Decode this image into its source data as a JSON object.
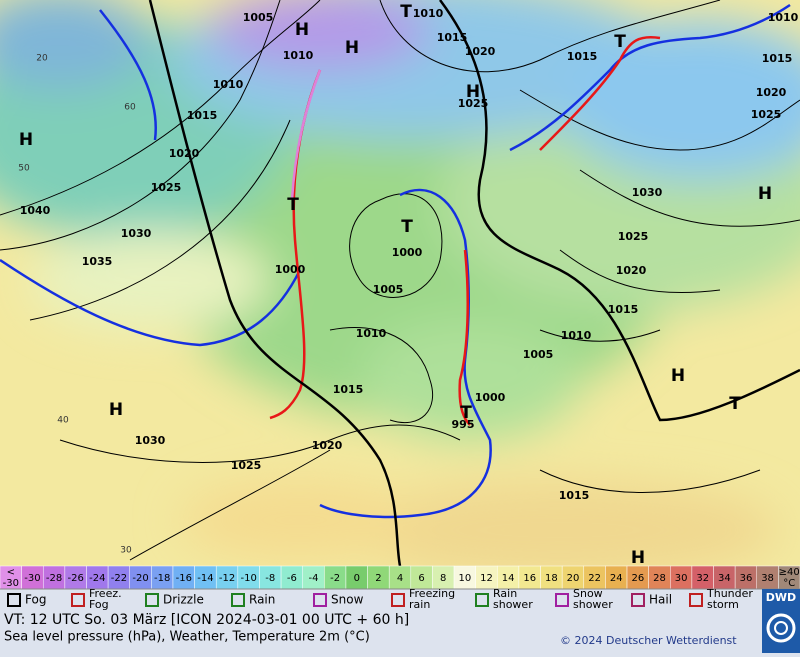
{
  "map": {
    "pressure_labels": [
      "1005",
      "1010",
      "1015",
      "1020",
      "1010",
      "1010",
      "1015",
      "1020",
      "1025",
      "1030",
      "1035",
      "1040",
      "1025",
      "1015",
      "1015",
      "1020",
      "1025",
      "1010",
      "1030",
      "1025",
      "1020",
      "1015",
      "1010",
      "1005",
      "1000",
      "1005",
      "1010",
      "1000",
      "1015",
      "1000",
      "995",
      "1020",
      "1025",
      "1030",
      "1015"
    ],
    "centers": [
      "H",
      "H",
      "T",
      "H",
      "T",
      "H",
      "H",
      "T",
      "T",
      "H",
      "T",
      "H",
      "T",
      "H"
    ],
    "temperature_labels": [
      "60",
      "50",
      "40",
      "30",
      "20"
    ]
  },
  "scale": {
    "below": [
      "<",
      "-30"
    ],
    "values": [
      -30,
      -28,
      -26,
      -24,
      -22,
      -20,
      -18,
      -16,
      -14,
      -12,
      -10,
      -8,
      -6,
      -4,
      -2,
      0,
      2,
      4,
      6,
      8,
      10,
      12,
      14,
      16,
      18,
      20,
      22,
      24,
      26,
      28,
      30,
      32,
      34,
      36,
      38
    ],
    "above": [
      "≥40",
      "°C"
    ]
  },
  "legend": [
    [
      "Fog"
    ],
    [
      "Freez.",
      "Fog"
    ],
    [
      "Drizzle"
    ],
    [
      "Rain"
    ],
    [
      "Snow"
    ],
    [
      "Freezing",
      "rain"
    ],
    [
      "Rain",
      "shower"
    ],
    [
      "Snow",
      "shower"
    ],
    [
      "Hail"
    ],
    [
      "Thunder",
      "storm"
    ]
  ],
  "footer": {
    "valid_time": "VT: 12 UTC So.  03 März [ICON 2024-03-01  00 UTC + 60 h]",
    "description": "Sea level pressure (hPa), Weather, Temperature 2m (°C)",
    "copyright": "© 2024 Deutscher Wetterdienst",
    "logo": "DWD"
  }
}
